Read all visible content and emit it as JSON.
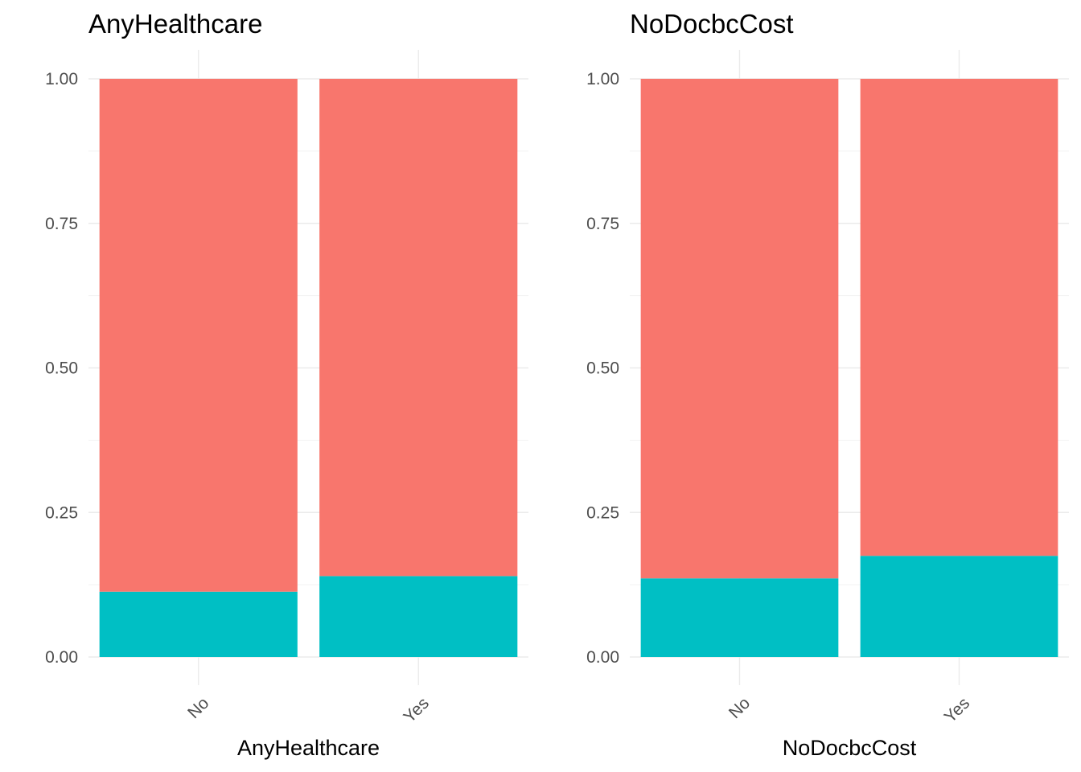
{
  "chart_data": [
    {
      "type": "bar",
      "stacked": true,
      "title": "AnyHealthcare",
      "xlabel": "AnyHealthcare",
      "ylabel": "",
      "categories": [
        "No",
        "Yes"
      ],
      "ylim": [
        0,
        1
      ],
      "yticks": [
        "0.00",
        "0.25",
        "0.50",
        "0.75",
        "1.00"
      ],
      "grid": true,
      "legend": "none",
      "series": [
        {
          "color": "#00BFC4",
          "values": [
            0.113,
            0.14
          ]
        },
        {
          "color": "#F8766D",
          "values": [
            0.887,
            0.86
          ]
        }
      ]
    },
    {
      "type": "bar",
      "stacked": true,
      "title": "NoDocbcCost",
      "xlabel": "NoDocbcCost",
      "ylabel": "",
      "categories": [
        "No",
        "Yes"
      ],
      "ylim": [
        0,
        1
      ],
      "yticks": [
        "0.00",
        "0.25",
        "0.50",
        "0.75",
        "1.00"
      ],
      "grid": true,
      "legend": "none",
      "series": [
        {
          "color": "#00BFC4",
          "values": [
            0.136,
            0.175
          ]
        },
        {
          "color": "#F8766D",
          "values": [
            0.864,
            0.825
          ]
        }
      ]
    }
  ]
}
